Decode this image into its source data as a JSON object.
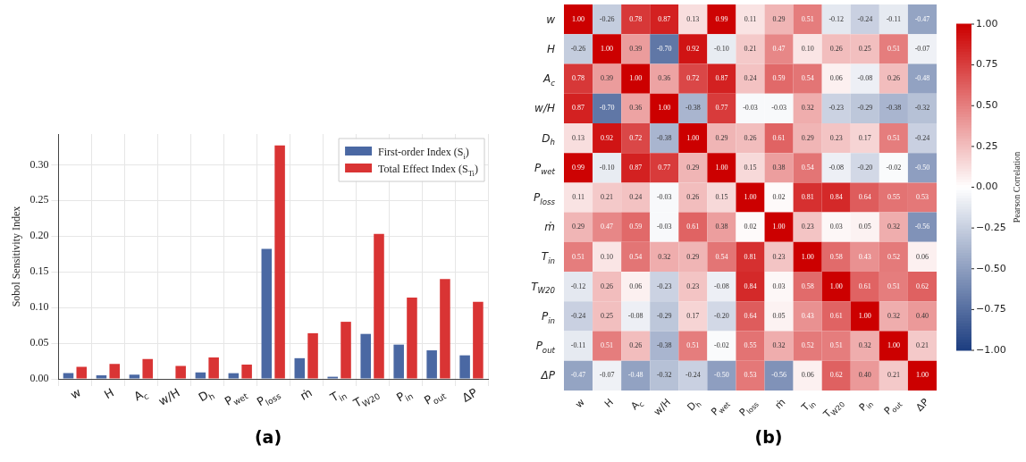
{
  "chart_data": [
    {
      "type": "bar",
      "title": "(a)",
      "ylabel": "Sobol Sensitivity Index",
      "categories": [
        "w",
        "H",
        "A$_{c}$",
        "w/H",
        "D$_{h}$",
        "P$_{wet}$",
        "P$_{loss}$",
        "ṁ",
        "T$_{in}$",
        "T$_{W20}$",
        "P$_{in}$",
        "P$_{out}$",
        "ΔP"
      ],
      "series": [
        {
          "name": "First-order Index (S$_{i}$)",
          "color": "#4a68a3",
          "values": [
            0.008,
            0.005,
            0.006,
            0.0,
            0.009,
            0.008,
            0.182,
            0.029,
            0.003,
            0.063,
            0.048,
            0.04,
            0.033
          ]
        },
        {
          "name": "Total Effect Index (S$_{Ti}$)",
          "color": "#d93434",
          "values": [
            0.017,
            0.021,
            0.028,
            0.018,
            0.03,
            0.02,
            0.327,
            0.064,
            0.08,
            0.203,
            0.114,
            0.14,
            0.108
          ]
        }
      ],
      "ylim": [
        0,
        0.343
      ],
      "yticks": [
        {
          "value": 0,
          "label": "0.00"
        },
        {
          "value": 0.05,
          "label": "0.05"
        },
        {
          "value": 0.1,
          "label": "0.10"
        },
        {
          "value": 0.15,
          "label": "0.15"
        },
        {
          "value": 0.2,
          "label": "0.20"
        },
        {
          "value": 0.25,
          "label": "0.25"
        },
        {
          "value": 0.3,
          "label": "0.30"
        }
      ],
      "grid": true,
      "legend": "top right"
    },
    {
      "type": "heatmap",
      "title": "(b)",
      "clabel": "Pearson Correlation",
      "categories": [
        "w",
        "H",
        "A$_{c}$",
        "w/H",
        "D$_{h}$",
        "P$_{wet}$",
        "P$_{loss}$",
        "ṁ",
        "T$_{in}$",
        "T$_{W20}$",
        "P$_{in}$",
        "P$_{out}$",
        "ΔP"
      ],
      "y_categories": [
        "w",
        "H",
        "A$_{c}$",
        "w/H",
        "D$_{h}$",
        "P$_{wet}$",
        "P$_{loss}$",
        "ṁ",
        "T$_{in}$",
        "T$_{W20}$",
        "P$_{in}$",
        "P$_{out}$",
        "ΔP"
      ],
      "cells": [
        [
          1.0,
          -0.26,
          0.78,
          0.87,
          0.13,
          0.99,
          0.11,
          0.29,
          0.51,
          -0.12,
          -0.24,
          -0.11,
          -0.47
        ],
        [
          -0.26,
          1.0,
          0.39,
          -0.7,
          0.92,
          -0.1,
          0.21,
          0.47,
          0.1,
          0.26,
          0.25,
          0.51,
          -0.07
        ],
        [
          0.78,
          0.39,
          1.0,
          0.36,
          0.72,
          0.87,
          0.24,
          0.59,
          0.54,
          0.06,
          -0.08,
          0.26,
          -0.48
        ],
        [
          0.87,
          -0.7,
          0.36,
          1.0,
          -0.38,
          0.77,
          -0.03,
          -0.03,
          0.32,
          -0.23,
          -0.29,
          -0.38,
          -0.32
        ],
        [
          0.13,
          0.92,
          0.72,
          -0.38,
          1.0,
          0.29,
          0.26,
          0.61,
          0.29,
          0.23,
          0.17,
          0.51,
          -0.24
        ],
        [
          0.99,
          -0.1,
          0.87,
          0.77,
          0.29,
          1.0,
          0.15,
          0.38,
          0.54,
          -0.08,
          -0.2,
          -0.02,
          -0.5
        ],
        [
          0.11,
          0.21,
          0.24,
          -0.03,
          0.26,
          0.15,
          1.0,
          0.02,
          0.81,
          0.84,
          0.64,
          0.55,
          0.53
        ],
        [
          0.29,
          0.47,
          0.59,
          -0.03,
          0.61,
          0.38,
          0.02,
          1.0,
          0.23,
          0.03,
          0.05,
          0.32,
          -0.56
        ],
        [
          0.51,
          0.1,
          0.54,
          0.32,
          0.29,
          0.54,
          0.81,
          0.23,
          1.0,
          0.58,
          0.43,
          0.52,
          0.06
        ],
        [
          -0.12,
          0.26,
          0.06,
          -0.23,
          0.23,
          -0.08,
          0.84,
          0.03,
          0.58,
          1.0,
          0.61,
          0.51,
          0.62
        ],
        [
          -0.24,
          0.25,
          -0.08,
          -0.29,
          0.17,
          -0.2,
          0.64,
          0.05,
          0.43,
          0.61,
          1.0,
          0.32,
          0.4
        ],
        [
          -0.11,
          0.51,
          0.26,
          -0.38,
          0.51,
          -0.02,
          0.55,
          0.32,
          0.52,
          0.51,
          0.32,
          1.0,
          0.21
        ],
        [
          -0.47,
          -0.07,
          -0.48,
          -0.32,
          -0.24,
          -0.5,
          0.53,
          -0.56,
          0.06,
          0.62,
          0.4,
          0.21,
          1.0
        ]
      ],
      "colors": [
        "#1c3d80",
        "#ffffff",
        "#cc0000"
      ],
      "clim": [
        -1,
        1
      ],
      "cticks": [
        {
          "value": -1,
          "label": "−1.00"
        },
        {
          "value": -0.75,
          "label": "−0.75"
        },
        {
          "value": -0.5,
          "label": "−0.50"
        },
        {
          "value": -0.25,
          "label": "−0.25"
        },
        {
          "value": 0,
          "label": "0.00"
        },
        {
          "value": 0.25,
          "label": "0.25"
        },
        {
          "value": 0.5,
          "label": "0.50"
        },
        {
          "value": 0.75,
          "label": "0.75"
        },
        {
          "value": 1,
          "label": "1.00"
        }
      ],
      "cell_labels": [
        [
          "1.00",
          "-0.26",
          "0.78",
          "0.87",
          "0.13",
          "0.99",
          "0.11",
          "0.29",
          "0.51",
          "-0.12",
          "-0.24",
          "-0.11",
          "-0.47"
        ],
        [
          "-0.26",
          "1.00",
          "0.39",
          "-0.70",
          "0.92",
          "-0.10",
          "0.21",
          "0.47",
          "0.10",
          "0.26",
          "0.25",
          "0.51",
          "-0.07"
        ],
        [
          "0.78",
          "0.39",
          "1.00",
          "0.36",
          "0.72",
          "0.87",
          "0.24",
          "0.59",
          "0.54",
          "0.06",
          "-0.08",
          "0.26",
          "-0.48"
        ],
        [
          "0.87",
          "-0.70",
          "0.36",
          "1.00",
          "-0.38",
          "0.77",
          "-0.03",
          "-0.03",
          "0.32",
          "-0.23",
          "-0.29",
          "-0.38",
          "-0.32"
        ],
        [
          "0.13",
          "0.92",
          "0.72",
          "-0.38",
          "1.00",
          "0.29",
          "0.26",
          "0.61",
          "0.29",
          "0.23",
          "0.17",
          "0.51",
          "-0.24"
        ],
        [
          "0.99",
          "-0.10",
          "0.87",
          "0.77",
          "0.29",
          "1.00",
          "0.15",
          "0.38",
          "0.54",
          "-0.08",
          "-0.20",
          "-0.02",
          "-0.50"
        ],
        [
          "0.11",
          "0.21",
          "0.24",
          "-0.03",
          "0.26",
          "0.15",
          "1.00",
          "0.02",
          "0.81",
          "0.84",
          "0.64",
          "0.55",
          "0.53"
        ],
        [
          "0.29",
          "0.47",
          "0.59",
          "-0.03",
          "0.61",
          "0.38",
          "0.02",
          "1.00",
          "0.23",
          "0.03",
          "0.05",
          "0.32",
          "-0.56"
        ],
        [
          "0.51",
          "0.10",
          "0.54",
          "0.32",
          "0.29",
          "0.54",
          "0.81",
          "0.23",
          "1.00",
          "0.58",
          "0.43",
          "0.52",
          "0.06"
        ],
        [
          "-0.12",
          "0.26",
          "0.06",
          "-0.23",
          "0.23",
          "-0.08",
          "0.84",
          "0.03",
          "0.58",
          "1.00",
          "0.61",
          "0.51",
          "0.62"
        ],
        [
          "-0.24",
          "0.25",
          "-0.08",
          "-0.29",
          "0.17",
          "-0.20",
          "0.64",
          "0.05",
          "0.43",
          "0.61",
          "1.00",
          "0.32",
          "0.40"
        ],
        [
          "-0.11",
          "0.51",
          "0.26",
          "-0.38",
          "0.51",
          "-0.02",
          "0.55",
          "0.32",
          "0.52",
          "0.51",
          "0.32",
          "1.00",
          "0.21"
        ],
        [
          "-0.47",
          "-0.07",
          "-0.48",
          "-0.32",
          "-0.24",
          "-0.50",
          "0.53",
          "-0.56",
          "0.06",
          "0.62",
          "0.40",
          "0.21",
          "1.00"
        ]
      ]
    }
  ]
}
